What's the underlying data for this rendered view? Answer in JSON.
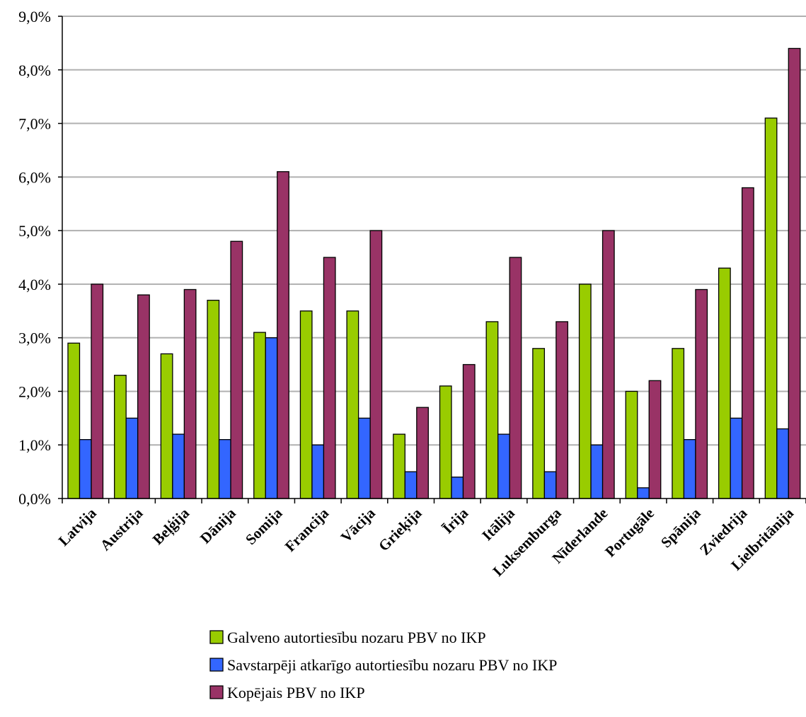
{
  "chart_data": {
    "type": "bar",
    "title": "",
    "xlabel": "",
    "ylabel": "",
    "ylim": [
      0,
      9
    ],
    "y_tick_step": 1,
    "y_tick_format": "percent_comma_1dp",
    "grid": "horizontal",
    "legend_position": "bottom",
    "categories": [
      "Latvija",
      "Austrija",
      "Beļģija",
      "Dānija",
      "Somija",
      "Francija",
      "Vācija",
      "Grieķija",
      "Īrija",
      "Itālija",
      "Luksemburga",
      "Nīderlande",
      "Portugāle",
      "Spānija",
      "Zviedrija",
      "Lielbritānija"
    ],
    "series": [
      {
        "name": "Galveno autortiesību nozaru PBV no IKP",
        "color": "#99cc00",
        "values": [
          2.9,
          2.3,
          2.7,
          3.7,
          3.1,
          3.5,
          3.5,
          1.2,
          2.1,
          3.3,
          2.8,
          4.0,
          2.0,
          2.8,
          4.3,
          7.1
        ]
      },
      {
        "name": "Savstarpēji atkarīgo autortiesību nozaru PBV no IKP",
        "color": "#3366ff",
        "values": [
          1.1,
          1.5,
          1.2,
          1.1,
          3.0,
          1.0,
          1.5,
          0.5,
          0.4,
          1.2,
          0.5,
          1.0,
          0.2,
          1.1,
          1.5,
          1.3
        ]
      },
      {
        "name": "Kopējais PBV no IKP",
        "color": "#993366",
        "values": [
          4.0,
          3.8,
          3.9,
          4.8,
          6.1,
          4.5,
          5.0,
          1.7,
          2.5,
          4.5,
          3.3,
          5.0,
          2.2,
          3.9,
          5.8,
          8.4
        ]
      }
    ]
  }
}
